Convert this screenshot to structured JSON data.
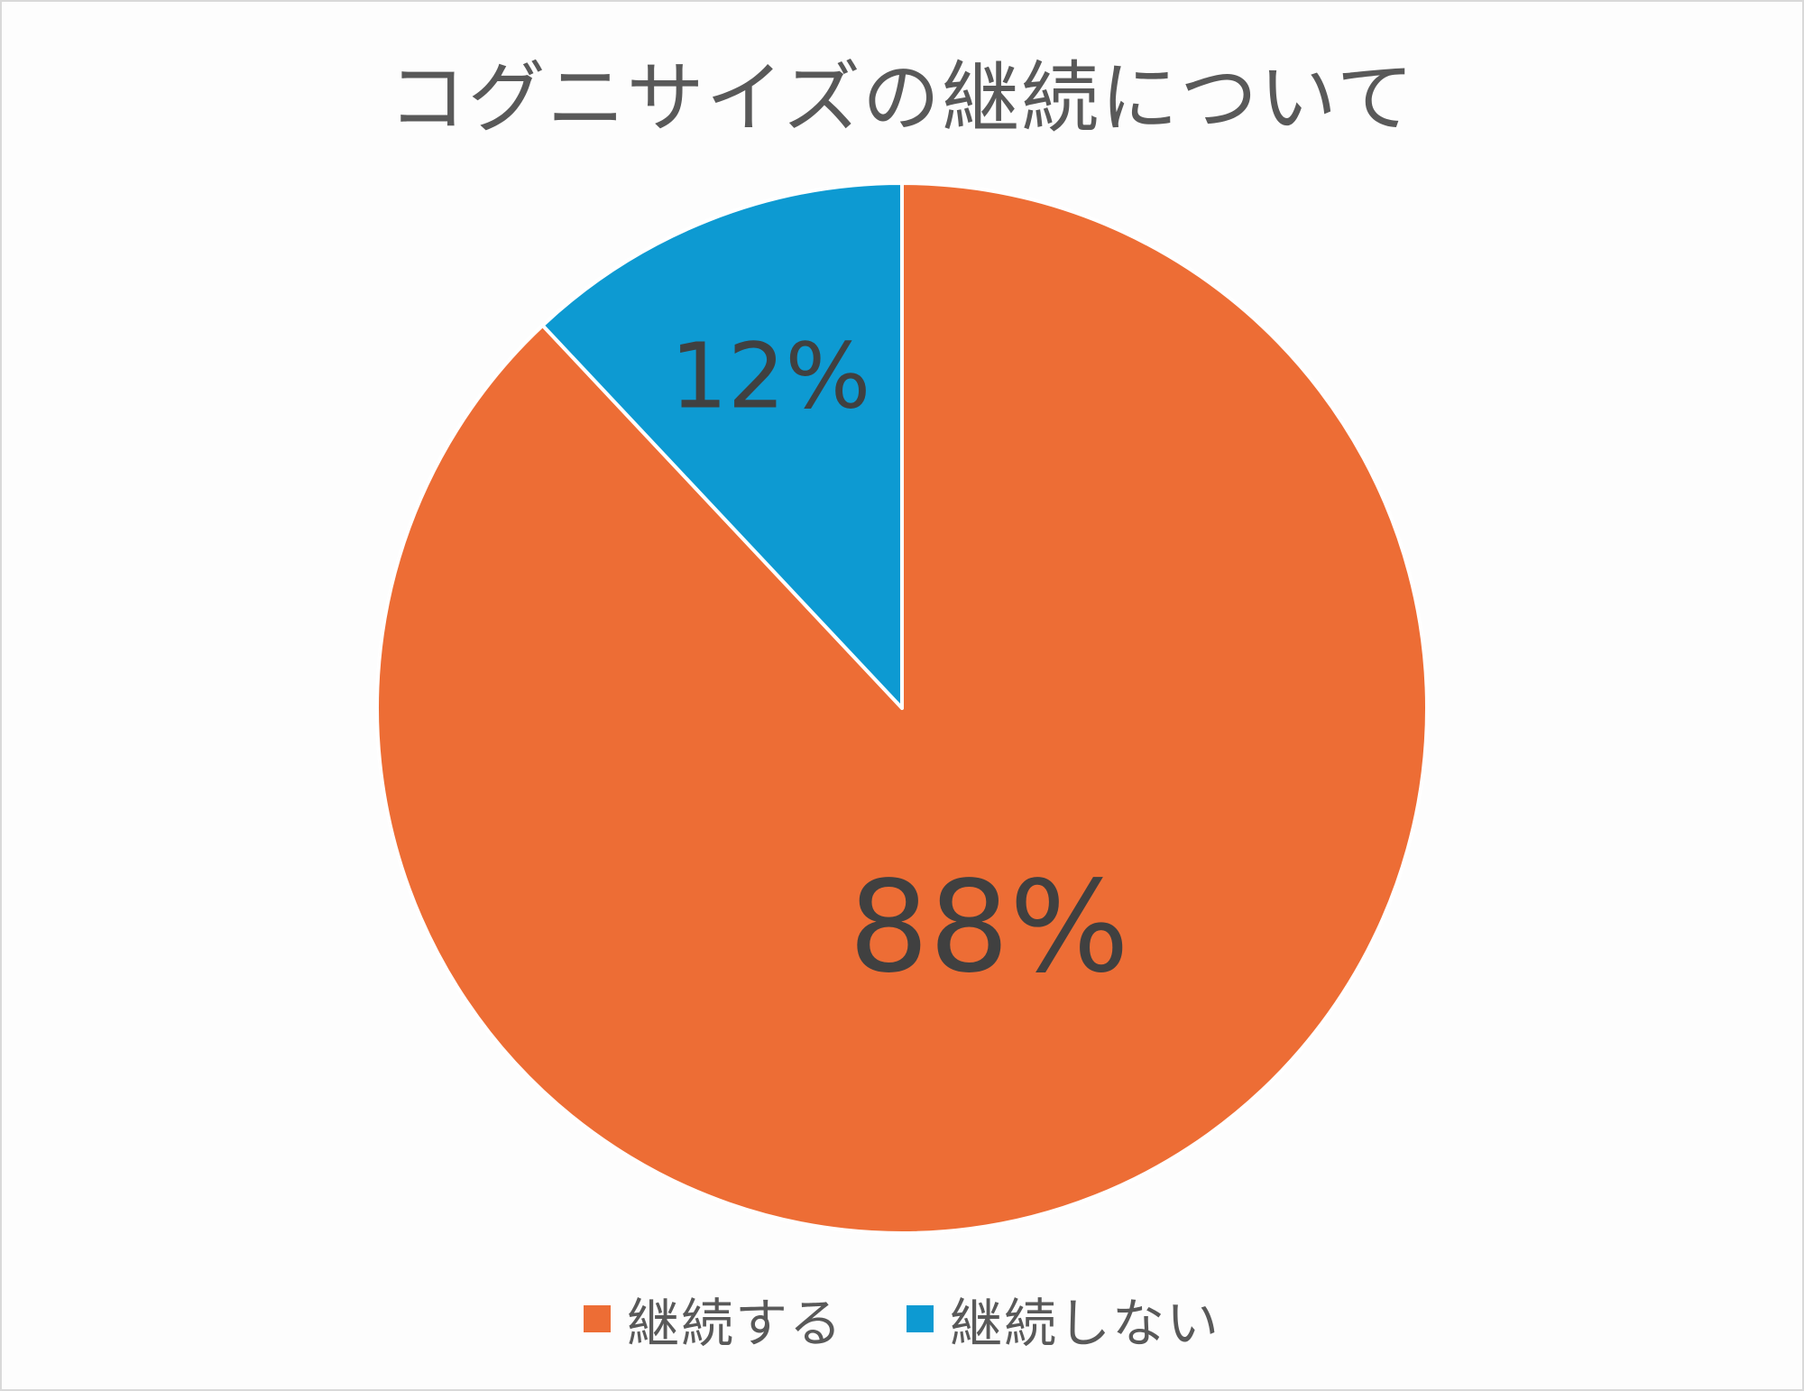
{
  "chart_data": {
    "type": "pie",
    "title": "コグニサイズの継続について",
    "categories": [
      "継続する",
      "継続しない"
    ],
    "values": [
      88,
      12
    ],
    "data_labels": [
      "88%",
      "12%"
    ],
    "colors": [
      "#ED6D35",
      "#0D9AD2"
    ],
    "legend_position": "bottom",
    "start_angle_deg": 0,
    "direction": "clockwise"
  }
}
